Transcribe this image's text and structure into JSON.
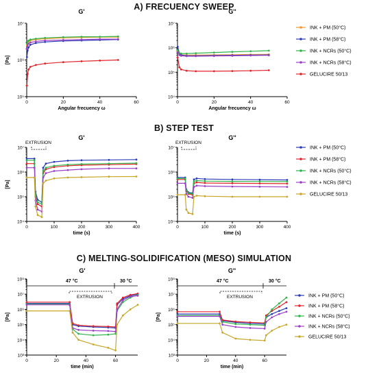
{
  "sections": [
    {
      "label": "A) FRECUENCY SWEEP"
    },
    {
      "label": "B) STEP TEST"
    },
    {
      "label": "C) MELTING-SOLIDIFICATION (MESO) SIMULATION"
    }
  ],
  "annotations": {
    "extrusion": "EXTRUSION",
    "temp_47": "47 °C",
    "temp_30": "30 °C"
  },
  "chart_data": [
    {
      "id": "A1",
      "type": "line",
      "title": "G'",
      "xlabel": "Angular frecuency ω",
      "ylabel": "[Pa]",
      "xlim": [
        0,
        60
      ],
      "xticks": [
        0,
        20,
        40,
        60
      ],
      "yscale": "log",
      "ylim": [
        100000,
        10000000
      ],
      "yticks": [
        "10⁵",
        "10⁶",
        "10⁷"
      ],
      "legend": "none",
      "series": [
        {
          "name": "",
          "color": "#f29a2e",
          "x": [
            0.1,
            0.5,
            1,
            2,
            5,
            10,
            20,
            30,
            40,
            50
          ],
          "y": [
            2500000,
            3000000,
            3200000,
            3400000,
            3600000,
            3800000,
            4000000,
            4100000,
            4200000,
            4200000
          ]
        },
        {
          "name": "",
          "color": "#2a3bb5",
          "x": [
            0.1,
            0.5,
            1,
            2,
            5,
            10,
            20,
            30,
            40,
            50
          ],
          "y": [
            1200000,
            1800000,
            2200000,
            2600000,
            2900000,
            3100000,
            3300000,
            3400000,
            3500000,
            3600000
          ]
        },
        {
          "name": "",
          "color": "#2fb34a",
          "x": [
            0.1,
            0.5,
            1,
            2,
            5,
            10,
            20,
            30,
            40,
            50
          ],
          "y": [
            2800000,
            3200000,
            3400000,
            3600000,
            3800000,
            4000000,
            4200000,
            4300000,
            4300000,
            4400000
          ]
        },
        {
          "name": "",
          "color": "#9b3fc7",
          "x": [
            0.1,
            0.5,
            1,
            2,
            5,
            10,
            20,
            30,
            40,
            50
          ],
          "y": [
            2000000,
            2500000,
            2800000,
            3000000,
            3200000,
            3400000,
            3500000,
            3600000,
            3700000,
            3700000
          ]
        },
        {
          "name": "",
          "color": "#e0242a",
          "x": [
            0.1,
            0.5,
            1,
            2,
            5,
            10,
            20,
            30,
            40,
            50
          ],
          "y": [
            200000,
            420000,
            550000,
            650000,
            730000,
            800000,
            870000,
            920000,
            960000,
            1000000
          ]
        }
      ]
    },
    {
      "id": "A2",
      "type": "line",
      "title": "G''",
      "xlabel": "Angular frecuency ω",
      "ylabel": "",
      "xlim": [
        0,
        60
      ],
      "xticks": [
        0,
        20,
        40,
        60
      ],
      "yscale": "log",
      "ylim": [
        10000,
        10000000
      ],
      "yticks": [
        "10⁴",
        "10⁵",
        "10⁶",
        "10⁷"
      ],
      "legend": "right",
      "series": [
        {
          "name": "INK + PM (50°C)",
          "color": "#f29a2e",
          "x": [
            0.1,
            1,
            2,
            5,
            10,
            20,
            30,
            40,
            50
          ],
          "y": [
            700000,
            560000,
            520000,
            500000,
            500000,
            510000,
            520000,
            530000,
            540000
          ]
        },
        {
          "name": "INK + PM (58°C)",
          "color": "#2a3bb5",
          "x": [
            0.1,
            1,
            2,
            5,
            10,
            20,
            30,
            40,
            50
          ],
          "y": [
            1100000,
            600000,
            500000,
            470000,
            470000,
            480000,
            490000,
            500000,
            510000
          ]
        },
        {
          "name": "INK + NCRs (50°C)",
          "color": "#2fb34a",
          "x": [
            0.1,
            1,
            2,
            5,
            10,
            20,
            30,
            40,
            50
          ],
          "y": [
            800000,
            600000,
            580000,
            580000,
            600000,
            640000,
            680000,
            720000,
            760000
          ]
        },
        {
          "name": "INK + NCRs (58°C)",
          "color": "#9b3fc7",
          "x": [
            0.1,
            1,
            2,
            5,
            10,
            20,
            30,
            40,
            50
          ],
          "y": [
            650000,
            500000,
            470000,
            450000,
            450000,
            460000,
            470000,
            480000,
            490000
          ]
        },
        {
          "name": "GELUCIRE 50/13",
          "color": "#e0242a",
          "x": [
            0.1,
            1,
            2,
            5,
            10,
            20,
            30,
            40,
            50
          ],
          "y": [
            400000,
            160000,
            130000,
            115000,
            110000,
            110000,
            112000,
            115000,
            120000
          ]
        }
      ]
    },
    {
      "id": "B1",
      "type": "line",
      "title": "G'",
      "xlabel": "time (s)",
      "ylabel": "[Pa]",
      "xlim": [
        0,
        400
      ],
      "xticks": [
        0,
        100,
        200,
        300,
        400
      ],
      "yscale": "log",
      "ylim": [
        10000,
        10000000
      ],
      "yticks": [
        "10⁴",
        "10⁵",
        "10⁶",
        "10⁷"
      ],
      "legend": "none",
      "series": [
        {
          "name": "",
          "color": "#2a3bb5",
          "x": [
            0,
            28,
            32,
            40,
            55,
            60,
            70,
            100,
            150,
            200,
            300,
            400
          ],
          "y": [
            3500000,
            3500000,
            160000,
            75000,
            60000,
            1500000,
            2200000,
            2600000,
            2900000,
            3000000,
            3100000,
            3200000
          ]
        },
        {
          "name": "",
          "color": "#e0242a",
          "x": [
            0,
            28,
            32,
            40,
            55,
            60,
            70,
            100,
            150,
            200,
            300,
            400
          ],
          "y": [
            2200000,
            2200000,
            100000,
            50000,
            40000,
            900000,
            1300000,
            1600000,
            1800000,
            1900000,
            2000000,
            2100000
          ]
        },
        {
          "name": "",
          "color": "#2fb34a",
          "x": [
            0,
            28,
            32,
            40,
            55,
            60,
            70,
            100,
            150,
            200,
            300,
            400
          ],
          "y": [
            3000000,
            3000000,
            120000,
            60000,
            50000,
            1100000,
            1500000,
            1800000,
            2000000,
            2100000,
            2200000,
            2300000
          ]
        },
        {
          "name": "",
          "color": "#9b3fc7",
          "x": [
            0,
            28,
            32,
            40,
            55,
            60,
            70,
            100,
            150,
            200,
            300,
            400
          ],
          "y": [
            1500000,
            1500000,
            70000,
            30000,
            25000,
            600000,
            900000,
            1100000,
            1200000,
            1300000,
            1400000,
            1400000
          ]
        },
        {
          "name": "",
          "color": "#c6a72a",
          "x": [
            0,
            28,
            32,
            40,
            55,
            60,
            70,
            100,
            150,
            200,
            300,
            400
          ],
          "y": [
            600000,
            600000,
            40000,
            18000,
            15000,
            350000,
            450000,
            550000,
            600000,
            620000,
            650000,
            660000
          ]
        }
      ]
    },
    {
      "id": "B2",
      "type": "line",
      "title": "G''",
      "xlabel": "time (s)",
      "ylabel": "",
      "xlim": [
        0,
        400
      ],
      "xticks": [
        0,
        100,
        200,
        300,
        400
      ],
      "yscale": "log",
      "ylim": [
        10000,
        10000000
      ],
      "yticks": [
        "10⁴",
        "10⁵",
        "10⁶",
        "10⁷"
      ],
      "legend": "right",
      "series": [
        {
          "name": "INK + PM (50°C)",
          "color": "#2a3bb5",
          "x": [
            0,
            28,
            32,
            40,
            55,
            60,
            70,
            100,
            200,
            300,
            400
          ],
          "y": [
            600000,
            600000,
            200000,
            150000,
            140000,
            500000,
            550000,
            520000,
            500000,
            490000,
            480000
          ]
        },
        {
          "name": "INK + PM (58°C)",
          "color": "#e0242a",
          "x": [
            0,
            28,
            32,
            40,
            55,
            60,
            70,
            100,
            200,
            300,
            400
          ],
          "y": [
            500000,
            500000,
            170000,
            130000,
            120000,
            350000,
            380000,
            360000,
            350000,
            345000,
            340000
          ]
        },
        {
          "name": "INK + NCRs (50°C)",
          "color": "#2fb34a",
          "x": [
            0,
            28,
            32,
            40,
            55,
            60,
            70,
            100,
            200,
            300,
            400
          ],
          "y": [
            550000,
            550000,
            180000,
            140000,
            130000,
            420000,
            450000,
            430000,
            420000,
            415000,
            410000
          ]
        },
        {
          "name": "INK + NCRs (58°C)",
          "color": "#9b3fc7",
          "x": [
            0,
            28,
            32,
            40,
            55,
            60,
            70,
            100,
            200,
            300,
            400
          ],
          "y": [
            350000,
            350000,
            130000,
            100000,
            90000,
            250000,
            280000,
            270000,
            260000,
            255000,
            250000
          ]
        },
        {
          "name": "GELUCIRE 50/13",
          "color": "#c6a72a",
          "x": [
            0,
            28,
            32,
            40,
            55,
            60,
            70,
            100,
            200,
            300,
            400
          ],
          "y": [
            120000,
            120000,
            30000,
            22000,
            20000,
            100000,
            110000,
            105000,
            100000,
            100000,
            100000
          ]
        }
      ]
    },
    {
      "id": "C1",
      "type": "line",
      "title": "G'",
      "xlabel": "time (min)",
      "ylabel": "[Pa]",
      "xlim": [
        0,
        75
      ],
      "xticks": [
        0,
        20,
        40,
        60
      ],
      "yscale": "log",
      "ylim": [
        1000,
        100000000
      ],
      "yticks": [
        "10³",
        "10⁴",
        "10⁵",
        "10⁶",
        "10⁷",
        "10⁸"
      ],
      "legend": "none",
      "series": [
        {
          "name": "",
          "color": "#2a3bb5",
          "x": [
            0,
            29,
            31,
            35,
            45,
            55,
            60,
            61,
            65,
            70,
            75
          ],
          "y": [
            2500000,
            2500000,
            100000,
            80000,
            70000,
            65000,
            60000,
            2000000,
            5000000,
            8000000,
            10000000
          ]
        },
        {
          "name": "",
          "color": "#e0242a",
          "x": [
            0,
            29,
            31,
            35,
            45,
            55,
            60,
            61,
            65,
            70,
            75
          ],
          "y": [
            3000000,
            3000000,
            120000,
            90000,
            80000,
            75000,
            70000,
            2500000,
            6000000,
            9000000,
            11000000
          ]
        },
        {
          "name": "",
          "color": "#2fb34a",
          "x": [
            0,
            29,
            31,
            35,
            45,
            55,
            60,
            61,
            65,
            70,
            75
          ],
          "y": [
            2200000,
            2200000,
            50000,
            25000,
            20000,
            22000,
            25000,
            800000,
            3000000,
            6000000,
            9000000
          ]
        },
        {
          "name": "",
          "color": "#9b3fc7",
          "x": [
            0,
            29,
            31,
            35,
            45,
            55,
            60,
            61,
            65,
            70,
            75
          ],
          "y": [
            2000000,
            2000000,
            60000,
            45000,
            40000,
            38000,
            35000,
            1000000,
            4000000,
            7000000,
            8000000
          ]
        },
        {
          "name": "",
          "color": "#c6a72a",
          "x": [
            0,
            29,
            31,
            35,
            45,
            55,
            60,
            61,
            65,
            70,
            75
          ],
          "y": [
            800000,
            800000,
            30000,
            10000,
            5000,
            3000,
            2000,
            100000,
            400000,
            1000000,
            2000000
          ]
        }
      ]
    },
    {
      "id": "C2",
      "type": "line",
      "title": "G''",
      "xlabel": "time (min)",
      "ylabel": "[Pa]",
      "xlim": [
        0,
        75
      ],
      "xticks": [
        0,
        20,
        40,
        60
      ],
      "yscale": "log",
      "ylim": [
        1000,
        100000000
      ],
      "yticks": [
        "10³",
        "10⁴",
        "10⁵",
        "10⁶",
        "10⁷",
        "10⁸"
      ],
      "legend": "right",
      "series": [
        {
          "name": "INK + PM (50°C)",
          "color": "#2a3bb5",
          "x": [
            0,
            29,
            31,
            40,
            50,
            60,
            61,
            65,
            70,
            75
          ],
          "y": [
            500000,
            500000,
            180000,
            140000,
            120000,
            110000,
            300000,
            500000,
            800000,
            1200000
          ]
        },
        {
          "name": "INK + PM (58°C)",
          "color": "#e0242a",
          "x": [
            0,
            29,
            31,
            40,
            50,
            60,
            61,
            65,
            70,
            75
          ],
          "y": [
            700000,
            700000,
            200000,
            160000,
            140000,
            130000,
            400000,
            800000,
            1500000,
            3000000
          ]
        },
        {
          "name": "INK + NCRs (50°C)",
          "color": "#2fb34a",
          "x": [
            0,
            29,
            31,
            40,
            50,
            60,
            61,
            65,
            70,
            75
          ],
          "y": [
            400000,
            400000,
            150000,
            110000,
            100000,
            90000,
            300000,
            1000000,
            2500000,
            6000000
          ]
        },
        {
          "name": "INK + NCRs (58°C)",
          "color": "#9b3fc7",
          "x": [
            0,
            29,
            31,
            40,
            50,
            60,
            61,
            65,
            70,
            75
          ],
          "y": [
            350000,
            350000,
            100000,
            70000,
            60000,
            55000,
            150000,
            300000,
            500000,
            700000
          ]
        },
        {
          "name": "GELUCIRE 50/13",
          "color": "#c6a72a",
          "x": [
            0,
            29,
            31,
            40,
            50,
            60,
            61,
            65,
            70,
            75
          ],
          "y": [
            120000,
            120000,
            30000,
            12000,
            10000,
            9000,
            20000,
            40000,
            70000,
            100000
          ]
        }
      ]
    }
  ]
}
